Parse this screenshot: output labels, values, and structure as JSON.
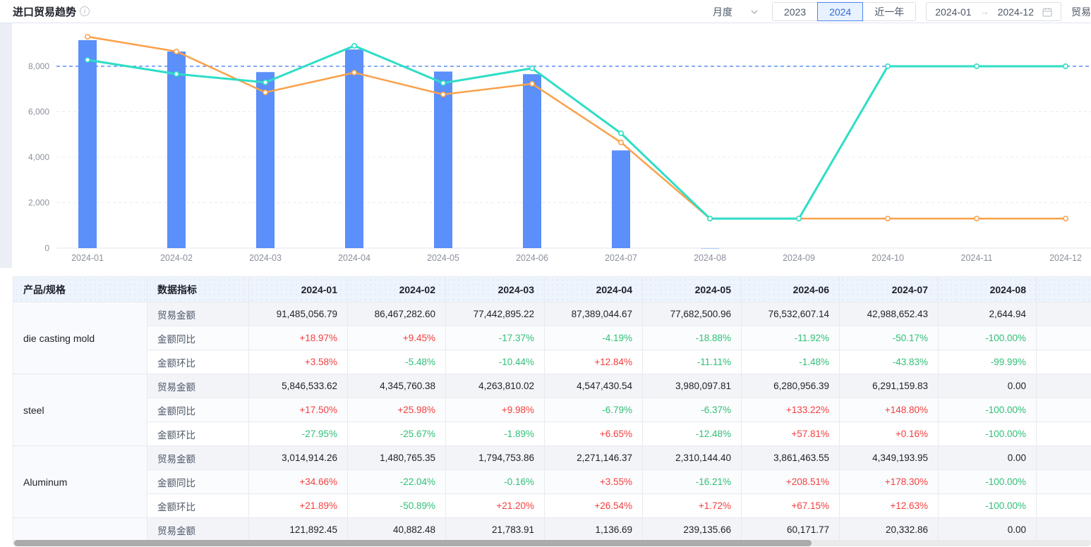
{
  "header": {
    "title": "进口贸易趋势",
    "period_select": {
      "value": "月度"
    },
    "year_tabs": [
      {
        "label": "2023",
        "active": false
      },
      {
        "label": "2024",
        "active": true
      },
      {
        "label": "近一年",
        "active": false
      }
    ],
    "date_range": {
      "from": "2024-01",
      "to": "2024-12"
    },
    "right_cut_label": "贸易"
  },
  "colors": {
    "bar": "#5b8ff9",
    "line_orange": "#f9a14b",
    "line_teal": "#2edec6",
    "reference": "#5b8ff9",
    "grid": "#e9ebf0",
    "axis_text": "#8b909c",
    "up": "#f53f3f",
    "down": "#30bf78"
  },
  "chart_data": {
    "type": "bar+line",
    "categories": [
      "2024-01",
      "2024-02",
      "2024-03",
      "2024-04",
      "2024-05",
      "2024-06",
      "2024-07",
      "2024-08",
      "2024-09",
      "2024-10",
      "2024-11",
      "2024-12"
    ],
    "series": [
      {
        "name": "bar-series",
        "type": "bar",
        "values": [
          9148,
          8647,
          7744,
          8739,
          7768,
          7653,
          4299,
          0.3,
          null,
          null,
          null,
          null
        ]
      },
      {
        "name": "orange-line",
        "type": "line",
        "values": [
          9300,
          8650,
          6850,
          7720,
          6760,
          7230,
          4650,
          1300,
          1300,
          1300,
          1300,
          1300
        ]
      },
      {
        "name": "teal-line",
        "type": "line",
        "values": [
          8280,
          7660,
          7290,
          8900,
          7260,
          7910,
          5050,
          1300,
          1300,
          8000,
          8000,
          8000
        ]
      }
    ],
    "yticks": [
      0,
      2000,
      4000,
      6000,
      8000
    ],
    "ylim": [
      0,
      9650
    ],
    "reference_line": 8000,
    "grid": true,
    "legend": false
  },
  "table": {
    "col_product": "产品/规格",
    "col_metric": "数据指标",
    "months": [
      "2024-01",
      "2024-02",
      "2024-03",
      "2024-04",
      "2024-05",
      "2024-06",
      "2024-07",
      "2024-08"
    ],
    "products": [
      {
        "name": "die casting mold",
        "rows": [
          {
            "label": "贸易金额",
            "kind": "amount",
            "values": [
              "91,485,056.79",
              "86,467,282.60",
              "77,442,895.22",
              "87,389,044.67",
              "77,682,500.96",
              "76,532,607.14",
              "42,988,652.43",
              "2,644.94"
            ]
          },
          {
            "label": "金额同比",
            "kind": "pct",
            "values": [
              "+18.97%",
              "+9.45%",
              "-17.37%",
              "-4.19%",
              "-18.88%",
              "-11.92%",
              "-50.17%",
              "-100.00%"
            ]
          },
          {
            "label": "金额环比",
            "kind": "pct",
            "values": [
              "+3.58%",
              "-5.48%",
              "-10.44%",
              "+12.84%",
              "-11.11%",
              "-1.48%",
              "-43.83%",
              "-99.99%"
            ]
          }
        ]
      },
      {
        "name": "steel",
        "rows": [
          {
            "label": "贸易金额",
            "kind": "amount",
            "values": [
              "5,846,533.62",
              "4,345,760.38",
              "4,263,810.02",
              "4,547,430.54",
              "3,980,097.81",
              "6,280,956.39",
              "6,291,159.83",
              "0.00"
            ]
          },
          {
            "label": "金额同比",
            "kind": "pct",
            "values": [
              "+17.50%",
              "+25.98%",
              "+9.98%",
              "-6.79%",
              "-6.37%",
              "+133.22%",
              "+148.80%",
              "-100.00%"
            ]
          },
          {
            "label": "金额环比",
            "kind": "pct",
            "values": [
              "-27.95%",
              "-25.67%",
              "-1.89%",
              "+6.65%",
              "-12.48%",
              "+57.81%",
              "+0.16%",
              "-100.00%"
            ]
          }
        ]
      },
      {
        "name": "Aluminum",
        "rows": [
          {
            "label": "贸易金额",
            "kind": "amount",
            "values": [
              "3,014,914.26",
              "1,480,765.35",
              "1,794,753.86",
              "2,271,146.37",
              "2,310,144.40",
              "3,861,463.55",
              "4,349,193.95",
              "0.00"
            ]
          },
          {
            "label": "金额同比",
            "kind": "pct",
            "values": [
              "+34.66%",
              "-22.04%",
              "-0.16%",
              "+3.55%",
              "-16.21%",
              "+208.51%",
              "+178.30%",
              "-100.00%"
            ]
          },
          {
            "label": "金额环比",
            "kind": "pct",
            "values": [
              "+21.89%",
              "-50.89%",
              "+21.20%",
              "+26.54%",
              "+1.72%",
              "+67.15%",
              "+12.63%",
              "-100.00%"
            ]
          }
        ]
      },
      {
        "name": "",
        "rows": [
          {
            "label": "贸易金额",
            "kind": "amount",
            "values": [
              "121,892.45",
              "40,882.48",
              "21,783.91",
              "1,136.69",
              "239,135.66",
              "60,171.77",
              "20,332.86",
              "0.00"
            ]
          }
        ]
      }
    ]
  }
}
